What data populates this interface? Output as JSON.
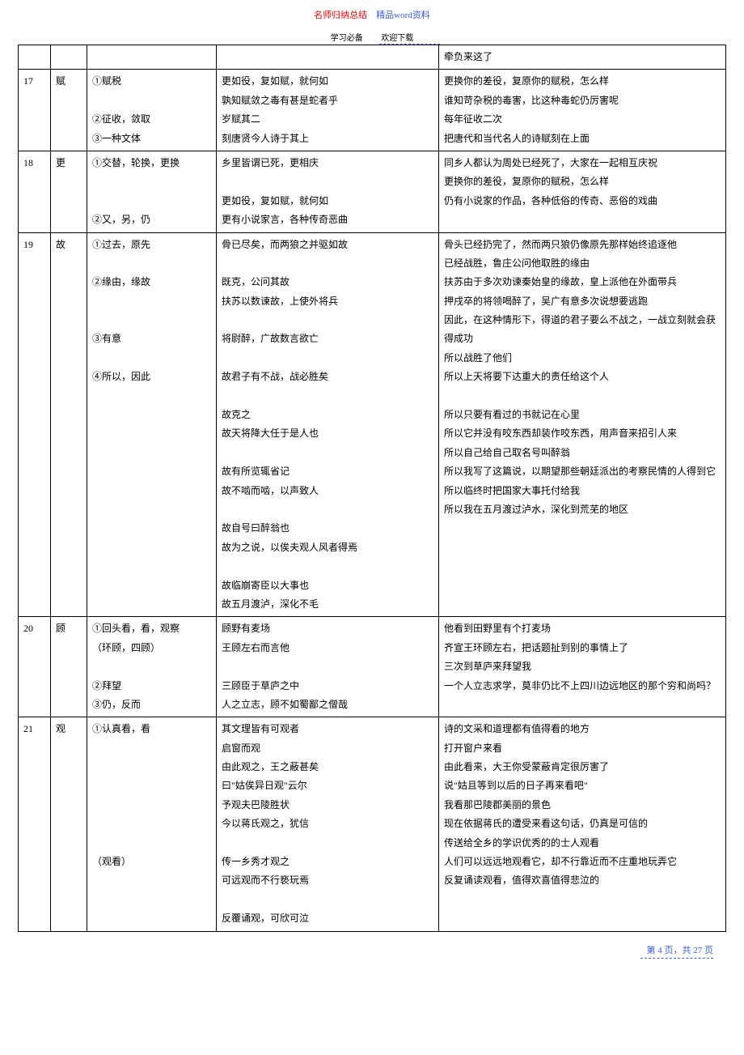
{
  "header": {
    "top_red": "名师归纳总结",
    "top_blue": "精品word资料",
    "sub_left": "学习必备",
    "sub_right": "欢迎下载"
  },
  "footer": {
    "text": "第 4 页，共 27 页"
  },
  "rows": [
    {
      "n": "",
      "w": "",
      "m": "",
      "ex": "",
      "tr": "牵负来这了"
    },
    {
      "n": "17",
      "w": "赋",
      "m": "①赋税\n\n②征收，敛取\n③一种文体",
      "ex": "更如役，复如赋，就何如\n孰知赋敛之毒有甚是蛇者乎\n岁赋其二\n刻唐贤今人诗于其上",
      "tr": "更换你的差役，复原你的赋税，怎么样\n谁知苛杂税的毒害，比这种毒蛇仍厉害呢\n每年征收二次\n把唐代和当代名人的诗赋刻在上面"
    },
    {
      "n": "18",
      "w": "更",
      "m": "①交替，轮换，更换\n\n\n②又，另，仍",
      "ex": "乡里皆谓已死，更相庆\n\n更如役，复如赋，就何如\n更有小说家言，各种传奇恶曲",
      "tr": "同乡人都认为周处已经死了，大家在一起相互庆祝\n更换你的差役，复原你的赋税，怎么样\n仍有小说家的作品，各种低俗的传奇、恶俗的戏曲"
    },
    {
      "n": "19",
      "w": "故",
      "m": "①过去，原先\n\n②缘由，缘故\n\n\n③有意\n\n④所以，因此",
      "ex": "骨已尽矣，而两狼之并驱如故\n\n既克，公问其故\n扶苏以数谏故，上使外将兵\n\n将尉醉，广故数言欲亡\n\n故君子有不战，战必胜矣\n\n故克之\n故天将降大任于是人也\n\n故有所览辄省记\n故不啮而啮，以声致人\n\n故自号曰醉翁也\n故为之说，以俟夫观人风者得焉\n\n故临崩寄臣以大事也\n故五月渡泸，深化不毛",
      "tr": "骨头已经扔完了，然而两只狼仍像原先那样始终追逐他\n已经战胜，鲁庄公问他取胜的缘由\n扶苏由于多次劝谏秦始皇的缘故，皇上派他在外面带兵\n押戌卒的将领喝醉了，吴广有意多次说想要逃跑\n因此，在这种情形下，得道的君子要么不战之，一战立刻就会获得成功\n所以战胜了他们\n所以上天将要下达重大的责任给这个人\n\n所以只要有看过的书就记在心里\n所以它并没有咬东西却装作咬东西，用声音来招引人来\n所以自己给自己取名号叫醉翁\n所以我写了这篇说，以期望那些朝廷派出的考察民情的人得到它\n所以临终时把国家大事托付给我\n所以我在五月渡过泸水，深化到荒芜的地区"
    },
    {
      "n": "20",
      "w": "顾",
      "m": "①回头看，看，观察\n（环顾，四顾）\n\n②拜望\n③仍，反而",
      "ex": "顾野有麦场\n王顾左右而言他\n\n三顾臣于草庐之中\n人之立志，顾不如蜀鄙之僧哉",
      "tr": "他看到田野里有个打麦场\n齐宣王环顾左右，把话题扯到别的事情上了\n三次到草庐来拜望我\n一个人立志求学，莫非仍比不上四川边远地区的那个穷和尚吗？"
    },
    {
      "n": "21",
      "w": "观",
      "m": "①认真看，看\n\n\n\n\n\n\n（观看）",
      "ex": "其文理皆有可观者\n启窗而观\n由此观之，王之蔽甚矣\n曰\"姑俟异日观\"云尔\n予观夫巴陵胜状\n今以蒋氏观之，犹信\n\n传一乡秀才观之\n可远观而不行亵玩焉\n\n反覆诵观，可欣可泣",
      "tr": "诗的文采和道理都有值得看的地方\n打开窗户来看\n由此看来，大王你受蒙蔽肯定很厉害了\n说\"姑且等到以后的日子再来看吧\"\n我看那巴陵郡美丽的景色\n现在依据蒋氏的遭受来看这句话，仍真是可信的\n传送给全乡的学识优秀的的士人观看\n人们可以远远地观看它，却不行靠近而不庄重地玩弄它\n反复诵读观看，值得欢喜值得悲泣的"
    }
  ]
}
